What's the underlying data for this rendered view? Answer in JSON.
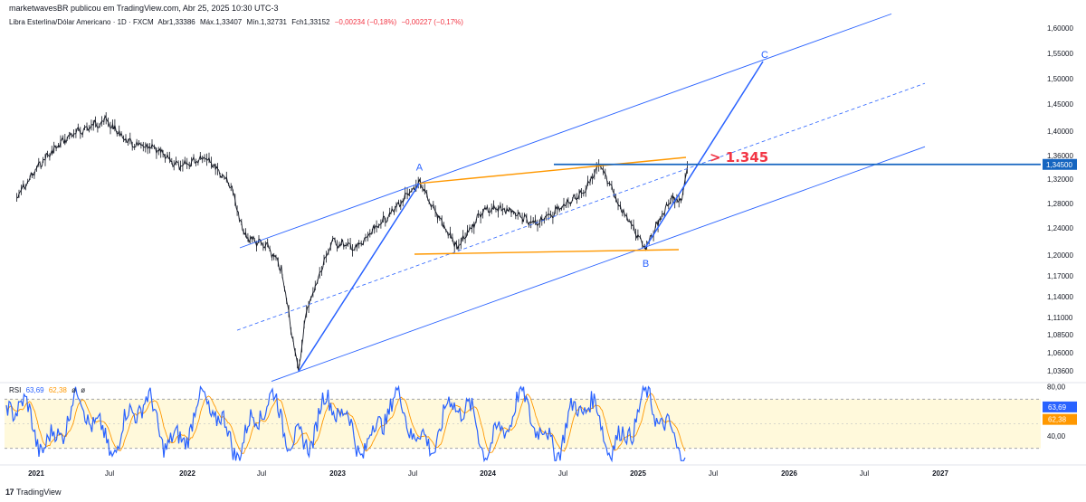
{
  "header": {
    "publisher_line": "marketwavesBR publicou em TradingView.com, Abr 25, 2025 10:30 UTC-3"
  },
  "symbol_bar": {
    "name": "Libra Esterlina/Dólar Americano · 1D · FXCM",
    "open": "Abr1,33386",
    "high": "Máx.1,33407",
    "low": "Mín.1,32731",
    "close": "Fch1,33152",
    "change": "−0,00234 (−0,18%)",
    "change2": "−0,00227 (−0,17%)",
    "change_color": "#f23645"
  },
  "rsi_legend": {
    "label": "RSI",
    "rsi_value": "63,69",
    "ma_value": "62,38",
    "extra1": "ø",
    "extra2": "ø",
    "rsi_color": "#2962ff",
    "ma_color": "#ff9800"
  },
  "footer": {
    "brand": "TradingView",
    "logo": "17"
  },
  "chart_data": [
    {
      "type": "line",
      "title": "Libra Esterlina/Dólar Americano · 1D · FXCM",
      "x_ticks": [
        "2021",
        "Jul",
        "2022",
        "Jul",
        "2023",
        "Jul",
        "2024",
        "Jul",
        "2025",
        "Jul",
        "2026",
        "Jul",
        "2027"
      ],
      "y_ticks": [
        "1,60000",
        "1,55000",
        "1,50000",
        "1,45000",
        "1,40000",
        "1,36000",
        "1,32000",
        "1,28000",
        "1,24000",
        "1,20000",
        "1,17000",
        "1,14000",
        "1,11000",
        "1,08500",
        "1,06000",
        "1,03600"
      ],
      "ylim": [
        1.03,
        1.62
      ],
      "scale": "log",
      "grid": false,
      "series": [
        {
          "values_x": [
            "2020-11",
            "2021-01",
            "2021-03",
            "2021-05",
            "2021-06",
            "2021-08",
            "2021-10",
            "2021-12",
            "2022-02",
            "2022-04",
            "2022-05",
            "2022-07",
            "2022-08",
            "2022-09-26",
            "2022-10",
            "2022-12",
            "2023-02",
            "2023-04",
            "2023-07-14",
            "2023-09",
            "2023-10",
            "2023-12",
            "2024-02",
            "2024-04",
            "2024-06",
            "2024-08",
            "2024-09-24",
            "2024-11",
            "2025-01-13",
            "2025-02",
            "2025-03",
            "2025-04-07",
            "2025-04-22"
          ],
          "values_y": [
            1.29,
            1.35,
            1.39,
            1.41,
            1.42,
            1.38,
            1.37,
            1.34,
            1.36,
            1.31,
            1.23,
            1.21,
            1.18,
            1.035,
            1.12,
            1.22,
            1.21,
            1.25,
            1.313,
            1.24,
            1.21,
            1.27,
            1.27,
            1.245,
            1.27,
            1.3,
            1.343,
            1.27,
            1.212,
            1.25,
            1.29,
            1.28,
            1.34
          ]
        }
      ],
      "price_label": "1,34500",
      "annotations": {
        "wave_labels": [
          "A",
          "B",
          "C"
        ],
        "target_text": "> 1.345",
        "target_color": "#f23645",
        "level_line_color": "#1565c0",
        "channel_color": "#2962ff",
        "triangle_color": "#ff9800"
      }
    },
    {
      "type": "line",
      "title": "RSI",
      "y_ticks": [
        "80,00",
        "40,00"
      ],
      "ylim": [
        18,
        82
      ],
      "levels": [
        70,
        30
      ],
      "band_color": "#fff9db",
      "series": [
        {
          "name": "RSI",
          "last_value": "63,69"
        },
        {
          "name": "MA",
          "last_value": "62,38"
        }
      ]
    }
  ]
}
